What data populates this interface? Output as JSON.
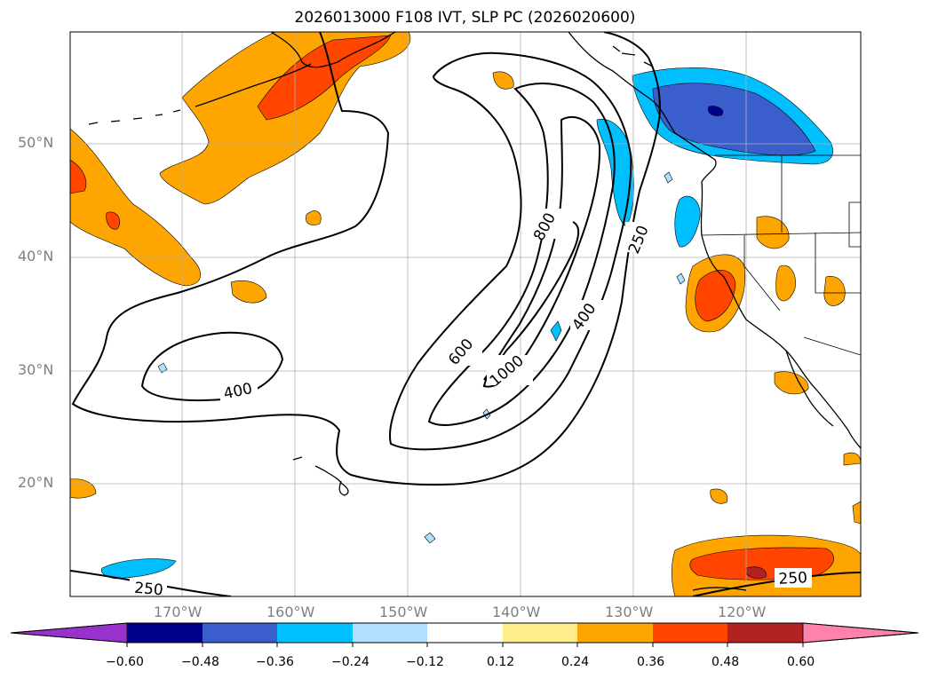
{
  "title": "2026013000 F108 IVT, SLP PC (2026020600)",
  "lat_labels": [
    "50°N",
    "40°N",
    "30°N",
    "20°N"
  ],
  "lon_labels": [
    "170°W",
    "160°W",
    "150°W",
    "140°W",
    "130°W",
    "120°W"
  ],
  "contour_labels": [
    "800",
    "250",
    "400",
    "600",
    "1000",
    "400",
    "250",
    "250"
  ],
  "colorbar": {
    "ticks": [
      "−0.60",
      "−0.48",
      "−0.36",
      "−0.24",
      "−0.12",
      "0.12",
      "0.24",
      "0.36",
      "0.48",
      "0.60"
    ],
    "colors": [
      "#9932cc",
      "#00008b",
      "#3a5fcd",
      "#00bfff",
      "#b0e2ff",
      "#ffffff",
      "#ffec8b",
      "#ffa500",
      "#ff4500",
      "#b22222",
      "#ff82ab"
    ]
  }
}
